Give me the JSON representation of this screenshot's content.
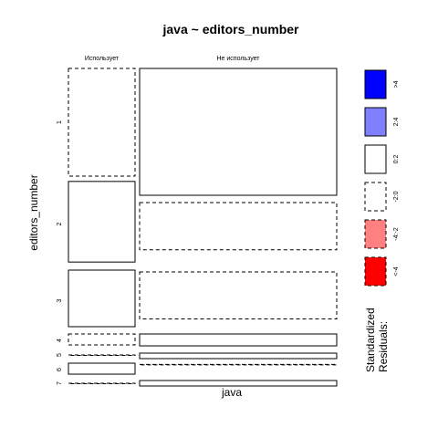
{
  "chart_data": {
    "type": "mosaic",
    "title": "java ~ editors_number",
    "xlabel": "java",
    "ylabel": "editors_number",
    "columns": [
      "Использует",
      "Не использует"
    ],
    "rows": [
      "1",
      "2",
      "3",
      "4",
      "5",
      "6",
      "7"
    ],
    "cells": [
      {
        "row": "1",
        "column": "Использует",
        "share": 0.38,
        "residual_band": "-2:0"
      },
      {
        "row": "1",
        "column": "Не использует",
        "share": 0.36,
        "residual_band": "0:2"
      },
      {
        "row": "2",
        "column": "Использует",
        "share": 0.25,
        "residual_band": "0:2"
      },
      {
        "row": "2",
        "column": "Не использует",
        "share": 0.17,
        "residual_band": "-2:0"
      },
      {
        "row": "3",
        "column": "Использует",
        "share": 0.17,
        "residual_band": "0:2"
      },
      {
        "row": "3",
        "column": "Не использует",
        "share": 0.15,
        "residual_band": "-2:0"
      },
      {
        "row": "4",
        "column": "Использует",
        "share": 0.03,
        "residual_band": "-2:0"
      },
      {
        "row": "4",
        "column": "Не использует",
        "share": 0.03,
        "residual_band": "0:2"
      },
      {
        "row": "5",
        "column": "Использует",
        "share": 0.0,
        "residual_band": "-2:0"
      },
      {
        "row": "5",
        "column": "Не использует",
        "share": 0.02,
        "residual_band": "0:2"
      },
      {
        "row": "6",
        "column": "Использует",
        "share": 0.03,
        "residual_band": "0:2"
      },
      {
        "row": "6",
        "column": "Не использует",
        "share": 0.005,
        "residual_band": "-2:0"
      },
      {
        "row": "7",
        "column": "Использует",
        "share": 0.0,
        "residual_band": "-2:0"
      },
      {
        "row": "7",
        "column": "Не использует",
        "share": 0.01,
        "residual_band": "0:2"
      }
    ],
    "legend": {
      "title_line1": "Standardized",
      "title_line2": "Residuals:",
      "placement": "right",
      "entries": [
        {
          "label": ">4",
          "band": ">4",
          "fill": "#0000ff",
          "dashed": false
        },
        {
          "label": "2:4",
          "band": "2:4",
          "fill": "#8080ff",
          "dashed": false
        },
        {
          "label": "0:2",
          "band": "0:2",
          "fill": "#ffffff",
          "dashed": false
        },
        {
          "label": "-2:0",
          "band": "-2:0",
          "fill": "#ffffff",
          "dashed": true
        },
        {
          "label": "-4:-2",
          "band": "-4:-2",
          "fill": "#ff8080",
          "dashed": true
        },
        {
          "label": "<-4",
          "band": "<-4",
          "fill": "#ff0000",
          "dashed": true
        }
      ]
    }
  }
}
